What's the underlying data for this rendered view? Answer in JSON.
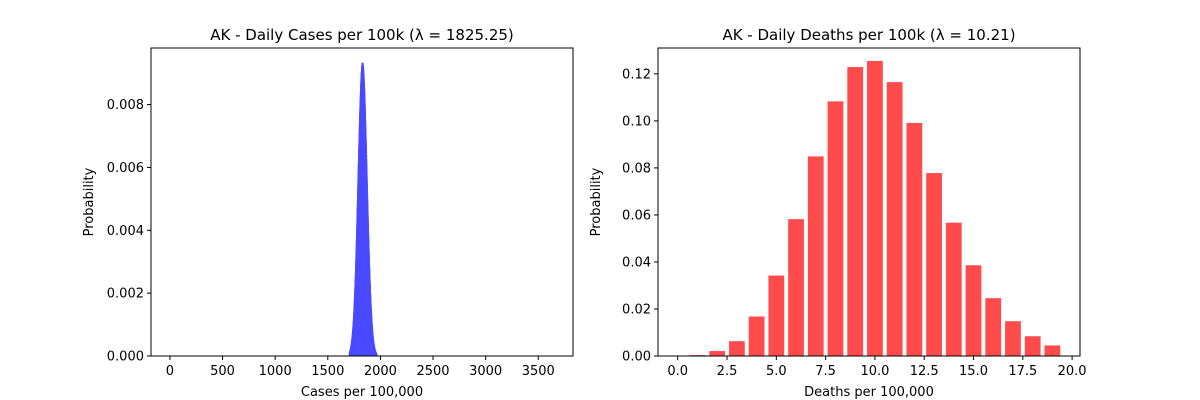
{
  "chart_data": [
    {
      "type": "bar",
      "title": "AK - Daily Cases per 100k (λ = 1825.25)",
      "xlabel": "Cases per 100,000",
      "ylabel": "Probability",
      "xlim": [
        -180,
        3830
      ],
      "ylim": [
        0,
        0.0098
      ],
      "xticks": [
        0,
        500,
        1000,
        1500,
        2000,
        2500,
        3000,
        3500
      ],
      "xtick_labels": [
        "0",
        "500",
        "1000",
        "1500",
        "2000",
        "2500",
        "3000",
        "3500"
      ],
      "yticks": [
        0,
        0.002,
        0.004,
        0.006,
        0.008
      ],
      "ytick_labels": [
        "0.000",
        "0.002",
        "0.004",
        "0.006",
        "0.008"
      ],
      "color": "#4b4bff",
      "distribution": {
        "kind": "poisson",
        "lambda": 1825.25,
        "x_range": [
          1700,
          1960
        ]
      },
      "grid": false,
      "legend": "none"
    },
    {
      "type": "bar",
      "title": "AK - Daily Deaths per 100k (λ = 10.21)",
      "xlabel": "Deaths per 100,000",
      "ylabel": "Probability",
      "xlim": [
        -1.0,
        20.4
      ],
      "ylim": [
        0,
        0.131
      ],
      "xticks": [
        0,
        2.5,
        5,
        7.5,
        10,
        12.5,
        15,
        17.5,
        20
      ],
      "xtick_labels": [
        "0.0",
        "2.5",
        "5.0",
        "7.5",
        "10.0",
        "12.5",
        "15.0",
        "17.5",
        "20.0"
      ],
      "yticks": [
        0,
        0.02,
        0.04,
        0.06,
        0.08,
        0.1,
        0.12
      ],
      "ytick_labels": [
        "0.00",
        "0.02",
        "0.04",
        "0.06",
        "0.08",
        "0.10",
        "0.12"
      ],
      "color": "#ff4b4b",
      "categories": [
        0,
        1,
        2,
        3,
        4,
        5,
        6,
        7,
        8,
        9,
        10,
        11,
        12,
        13,
        14,
        15,
        16,
        17,
        18,
        19
      ],
      "values": [
        4e-05,
        0.0004,
        0.0021,
        0.0063,
        0.0168,
        0.0342,
        0.0582,
        0.0849,
        0.1083,
        0.1229,
        0.1255,
        0.1165,
        0.0991,
        0.0778,
        0.0567,
        0.0386,
        0.0246,
        0.0148,
        0.0084,
        0.0045
      ],
      "grid": false,
      "legend": "none"
    }
  ]
}
